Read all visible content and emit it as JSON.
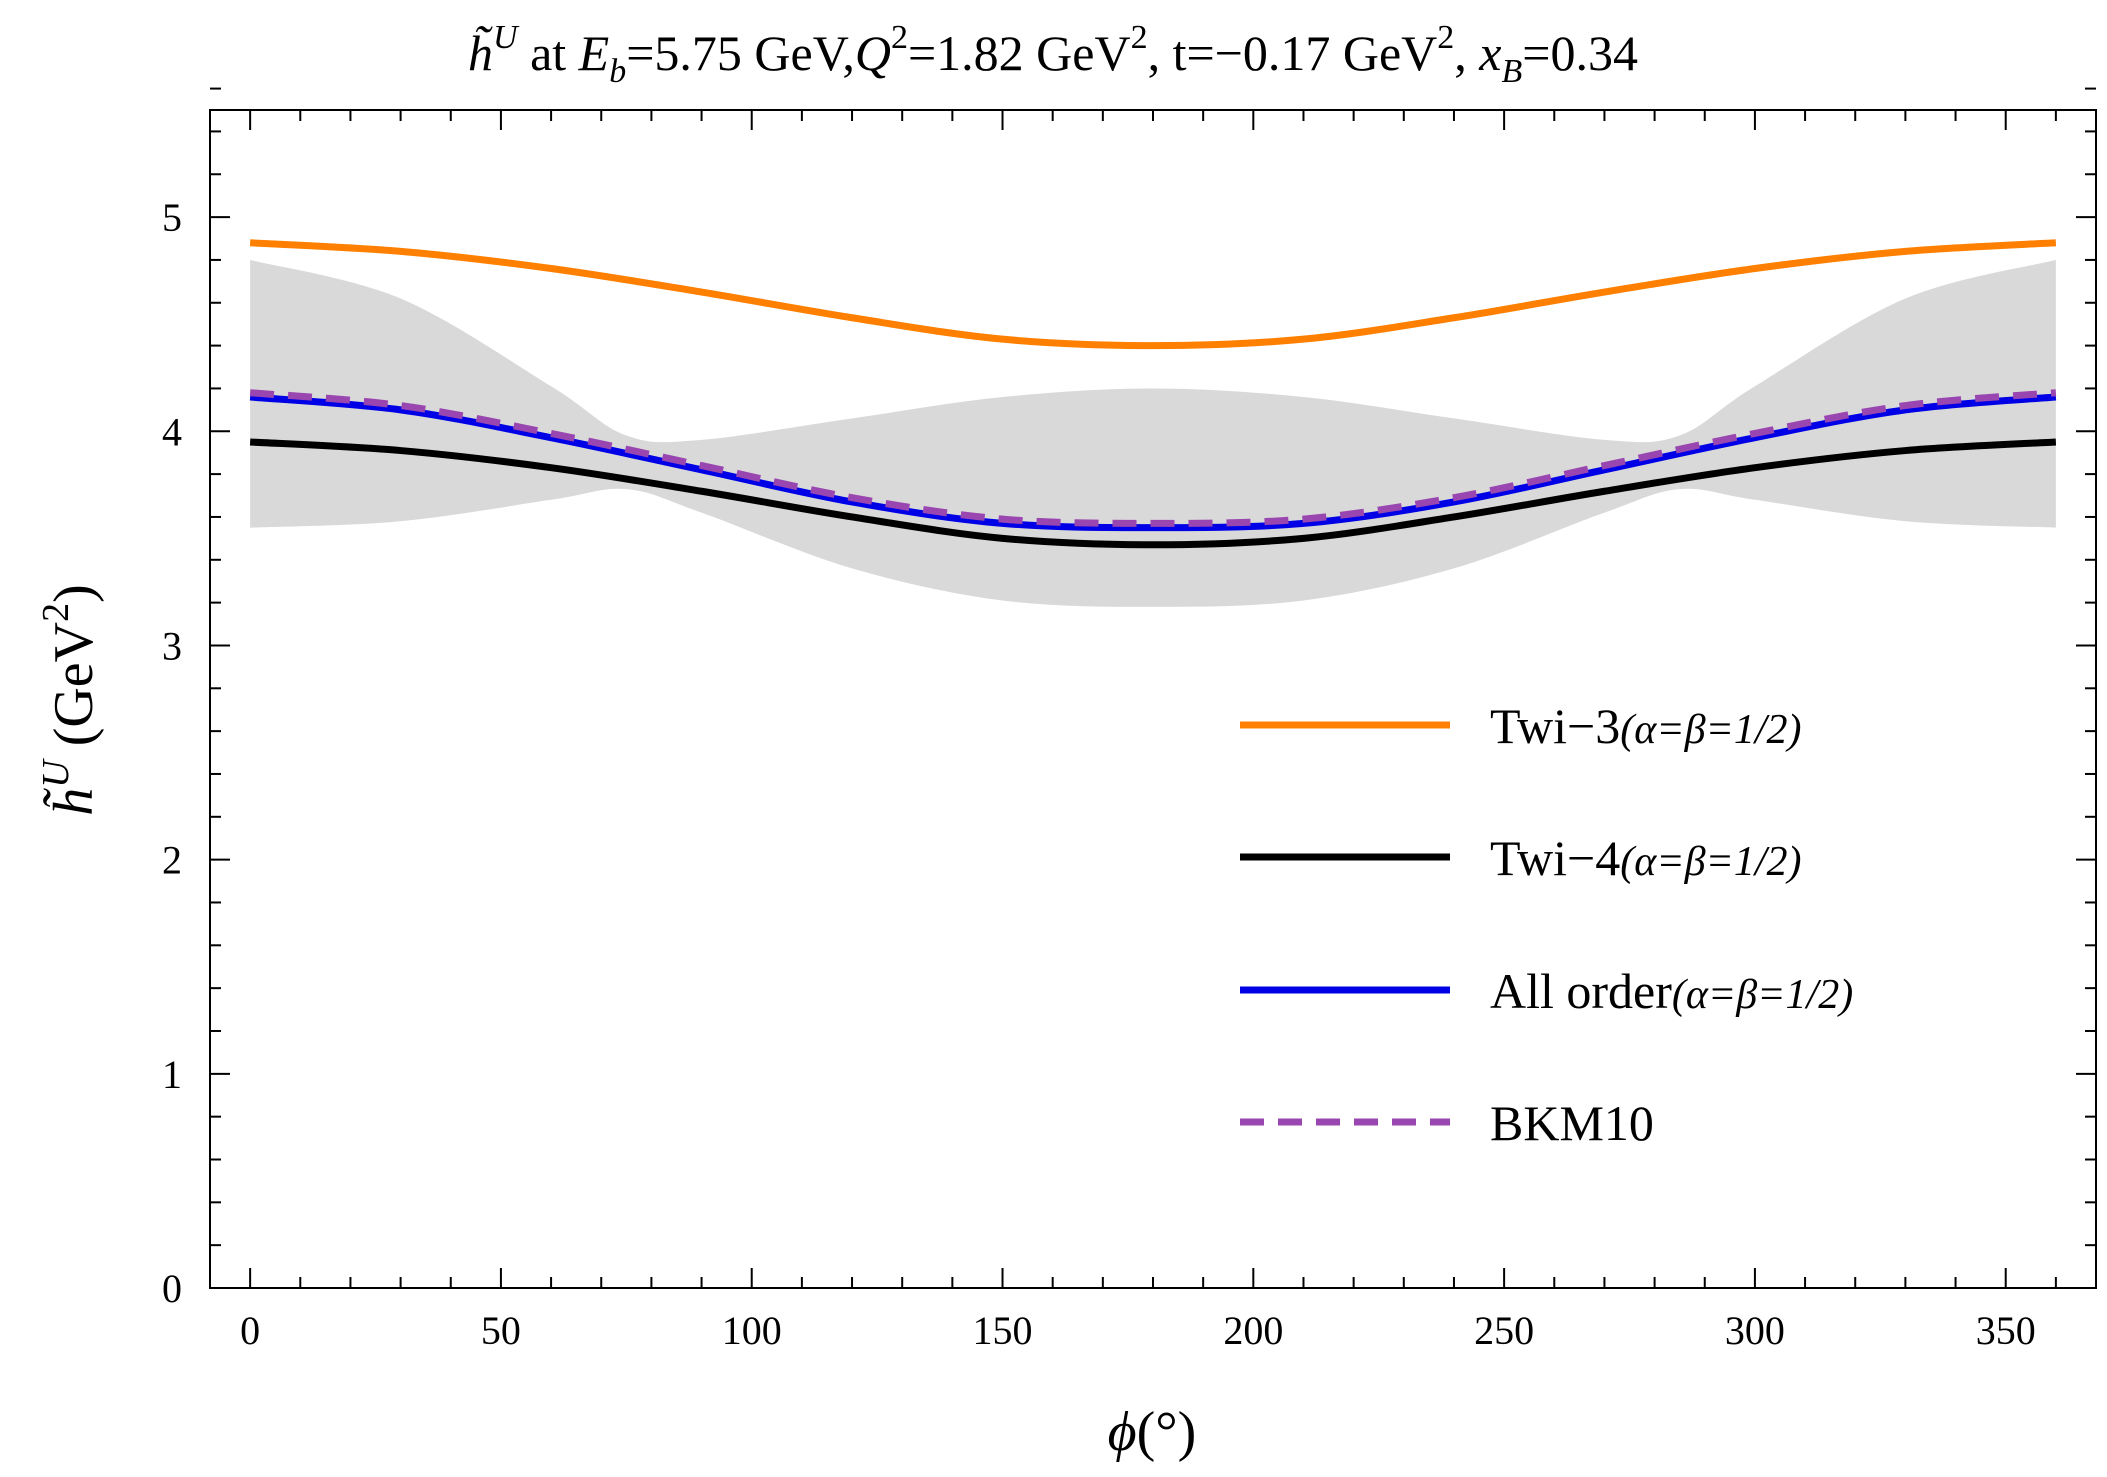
{
  "chart_data": {
    "type": "line",
    "title": "h̃^U at E_b=5.75 GeV, Q^2=1.82 GeV^2, t=−0.17 GeV^2, x_B=0.34",
    "title_parts": {
      "symbol": "h̃",
      "symbol_sup": "U",
      "at": "at",
      "eb_sym": "E",
      "eb_sub": "b",
      "eb_val": "=5.75 GeV,",
      "q_sym": "Q",
      "q_sup": "2",
      "q_val": "=1.82 GeV",
      "q_unit_sup": "2",
      "t_part": ", t=−0.17 GeV",
      "t_unit_sup": "2",
      "t_tail": ",",
      "xb_sym": "x",
      "xb_sub": "B",
      "xb_val": "=0.34"
    },
    "xlabel": "ϕ(°)",
    "xlabel_parts": {
      "phi": "ϕ",
      "unit": "(°)"
    },
    "ylabel": "h̃^U (GeV^2)",
    "ylabel_parts": {
      "symbol": "h̃",
      "sup": "U",
      "unit": "(GeV",
      "unit_sup": "2",
      "unit_close": ")"
    },
    "xlim": [
      -8,
      368
    ],
    "ylim": [
      0,
      5.5
    ],
    "xticks": [
      0,
      50,
      100,
      150,
      200,
      250,
      300,
      350
    ],
    "yticks": [
      0,
      1,
      2,
      3,
      4,
      5
    ],
    "x_minor_step": 10,
    "y_minor_step": 0.2,
    "band": {
      "name": "uncertainty band",
      "color": "#d9d9d9",
      "x": [
        0,
        30,
        60,
        75,
        90,
        120,
        150,
        180,
        210,
        240,
        270,
        285,
        300,
        330,
        360
      ],
      "upper": [
        4.8,
        4.62,
        4.21,
        3.98,
        3.96,
        4.06,
        4.16,
        4.2,
        4.16,
        4.06,
        3.96,
        3.98,
        4.21,
        4.62,
        4.8
      ],
      "lower": [
        3.55,
        3.58,
        3.68,
        3.73,
        3.62,
        3.36,
        3.21,
        3.18,
        3.21,
        3.36,
        3.62,
        3.73,
        3.68,
        3.58,
        3.55
      ]
    },
    "series": [
      {
        "name": "Twi-3",
        "label_main": "Twi−3",
        "label_sub": "(α=β=1/2)",
        "color": "#ff8000",
        "style": "solid",
        "x": [
          0,
          30,
          60,
          90,
          120,
          150,
          180,
          210,
          240,
          270,
          300,
          330,
          360
        ],
        "values": [
          4.88,
          4.84,
          4.76,
          4.65,
          4.53,
          4.43,
          4.4,
          4.43,
          4.53,
          4.65,
          4.76,
          4.84,
          4.88
        ]
      },
      {
        "name": "Twi-4",
        "label_main": "Twi−4",
        "label_sub": "(α=β=1/2)",
        "color": "#000000",
        "style": "solid",
        "x": [
          0,
          30,
          60,
          90,
          120,
          150,
          180,
          210,
          240,
          270,
          300,
          330,
          360
        ],
        "values": [
          3.95,
          3.91,
          3.83,
          3.72,
          3.6,
          3.5,
          3.47,
          3.5,
          3.6,
          3.72,
          3.83,
          3.91,
          3.95
        ]
      },
      {
        "name": "All order",
        "label_main": "All order",
        "label_sub": "(α=β=1/2)",
        "color": "#0000e6",
        "style": "solid",
        "x": [
          0,
          30,
          60,
          90,
          120,
          150,
          180,
          210,
          240,
          270,
          300,
          330,
          360
        ],
        "values": [
          4.16,
          4.1,
          3.97,
          3.82,
          3.67,
          3.57,
          3.55,
          3.57,
          3.67,
          3.82,
          3.97,
          4.1,
          4.16
        ]
      },
      {
        "name": "BKM10",
        "label_main": "BKM10",
        "label_sub": "",
        "color": "#9a46b0",
        "style": "dashed",
        "x": [
          0,
          30,
          60,
          90,
          120,
          150,
          180,
          210,
          240,
          270,
          300,
          330,
          360
        ],
        "values": [
          4.18,
          4.12,
          3.99,
          3.84,
          3.69,
          3.59,
          3.57,
          3.59,
          3.69,
          3.84,
          3.99,
          4.12,
          4.18
        ]
      }
    ],
    "legend_position": "center-right"
  }
}
